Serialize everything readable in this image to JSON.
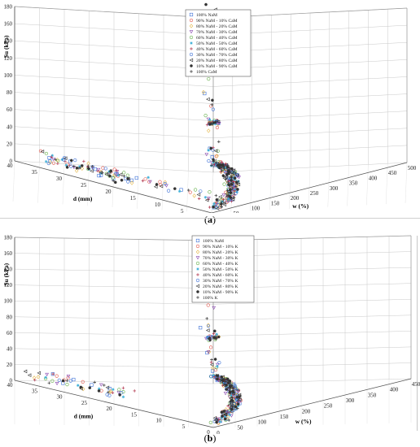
{
  "chart_data": [
    {
      "panel_label": "a",
      "type": "scatter",
      "projection": "3d",
      "zlabel": "Su (kPa)",
      "xlabel": "d (mm)",
      "ylabel": "w (%)",
      "z_ticks": [
        "0",
        "20",
        "40",
        "60",
        "80",
        "100",
        "120",
        "140",
        "160",
        "180"
      ],
      "x_ticks": [
        "40",
        "35",
        "30",
        "25",
        "20",
        "15",
        "10",
        "5",
        "0"
      ],
      "y_ticks": [
        "500",
        "450",
        "400",
        "350",
        "300",
        "250",
        "200",
        "150",
        "100",
        "50",
        "0"
      ],
      "zlim": [
        0,
        180
      ],
      "xlim": [
        40,
        0
      ],
      "ylim": [
        500,
        0
      ],
      "grid": true,
      "legend_placement": "top-center",
      "series": [
        {
          "name": "100% NaM",
          "marker": "square",
          "color": "#3b6fd6"
        },
        {
          "name": "90% NaM - 10% CaM",
          "marker": "circle",
          "color": "#e2574c"
        },
        {
          "name": "80% NaM - 20% CaM",
          "marker": "diamond",
          "color": "#e6b84a"
        },
        {
          "name": "70% NaM - 30% CaM",
          "marker": "triangle-down",
          "color": "#8a4ab0"
        },
        {
          "name": "60% NaM - 40% CaM",
          "marker": "circle",
          "color": "#66b04a"
        },
        {
          "name": "50% NaM - 50% CaM",
          "marker": "star",
          "color": "#3fb0d8"
        },
        {
          "name": "40% NaM - 60% CaM",
          "marker": "plus",
          "color": "#b0324a"
        },
        {
          "name": "30% NaM - 70% CaM",
          "marker": "circle",
          "color": "#3b6fd6"
        },
        {
          "name": "20% NaM - 80% CaM",
          "marker": "triangle-left",
          "color": "#333333"
        },
        {
          "name": "10% NaM - 90% CaM",
          "marker": "asterisk",
          "color": "#333333"
        },
        {
          "name": "100% CaM",
          "marker": "plus",
          "color": "#333333"
        }
      ]
    },
    {
      "panel_label": "b",
      "type": "scatter",
      "projection": "3d",
      "zlabel": "Su (kPa)",
      "xlabel": "d (mm)",
      "ylabel": "w (%)",
      "z_ticks": [
        "0",
        "20",
        "40",
        "60",
        "80",
        "100",
        "120",
        "140",
        "160",
        "180"
      ],
      "x_ticks": [
        "40",
        "35",
        "30",
        "25",
        "20",
        "15",
        "10",
        "5",
        "0"
      ],
      "y_ticks": [
        "450",
        "400",
        "350",
        "300",
        "250",
        "200",
        "150",
        "100",
        "50",
        "0"
      ],
      "zlim": [
        0,
        180
      ],
      "xlim": [
        40,
        0
      ],
      "ylim": [
        500,
        0
      ],
      "grid": true,
      "legend_placement": "top-center",
      "series": [
        {
          "name": "100% NaM",
          "marker": "square",
          "color": "#3b6fd6"
        },
        {
          "name": "90% NaM - 10% K",
          "marker": "circle",
          "color": "#e2574c"
        },
        {
          "name": "80% NaM - 20% K",
          "marker": "diamond",
          "color": "#e6b84a"
        },
        {
          "name": "70% NaM - 30% K",
          "marker": "triangle-down",
          "color": "#8a4ab0"
        },
        {
          "name": "60% NaM - 40% K",
          "marker": "circle",
          "color": "#66b04a"
        },
        {
          "name": "50% NaM - 50% K",
          "marker": "star",
          "color": "#3fb0d8"
        },
        {
          "name": "40% NaM - 60% K",
          "marker": "plus",
          "color": "#b0324a"
        },
        {
          "name": "30% NaM - 70% K",
          "marker": "circle",
          "color": "#3b6fd6"
        },
        {
          "name": "20% NaM - 80% K",
          "marker": "triangle-left",
          "color": "#333333"
        },
        {
          "name": "10% NaM - 90% K",
          "marker": "asterisk",
          "color": "#333333"
        },
        {
          "name": "100% K",
          "marker": "plus",
          "color": "#333333"
        }
      ]
    }
  ],
  "captions": {
    "a": "a",
    "b": "b"
  }
}
